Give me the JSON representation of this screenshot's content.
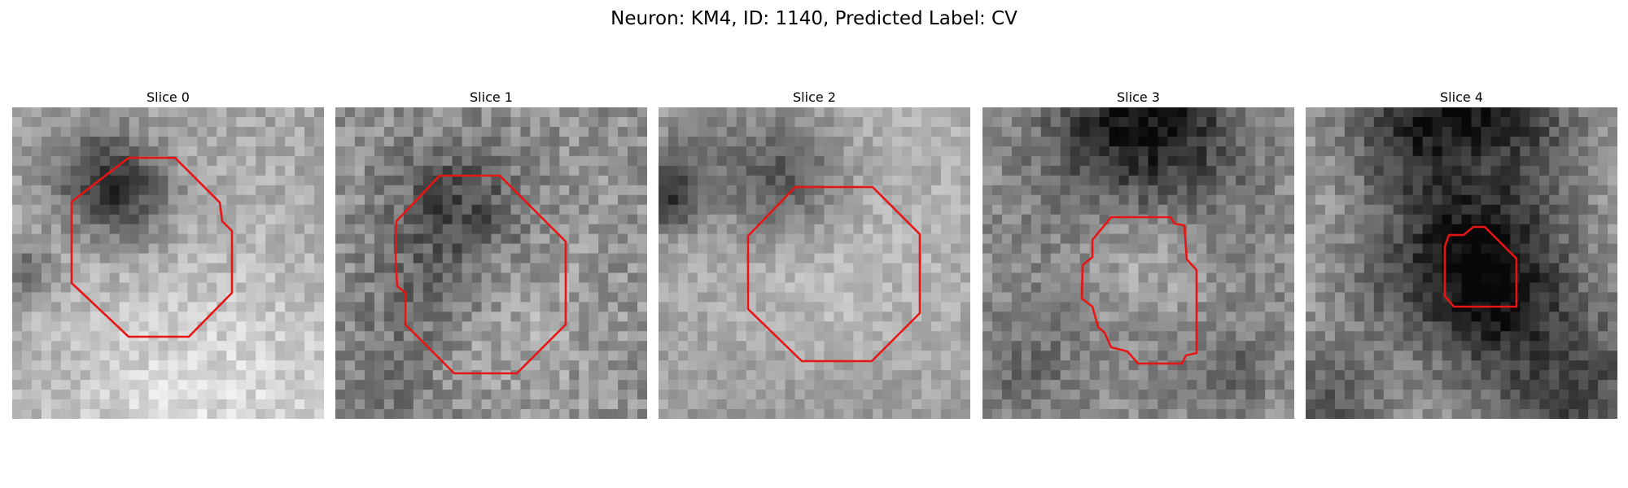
{
  "figure": {
    "title": "Neuron: KM4, ID: 1140, Predicted Label: CV",
    "slices": [
      {
        "label": "Slice 0"
      },
      {
        "label": "Slice 1"
      },
      {
        "label": "Slice 2"
      },
      {
        "label": "Slice 3"
      },
      {
        "label": "Slice 4"
      }
    ],
    "contour_color": "#e81515"
  }
}
